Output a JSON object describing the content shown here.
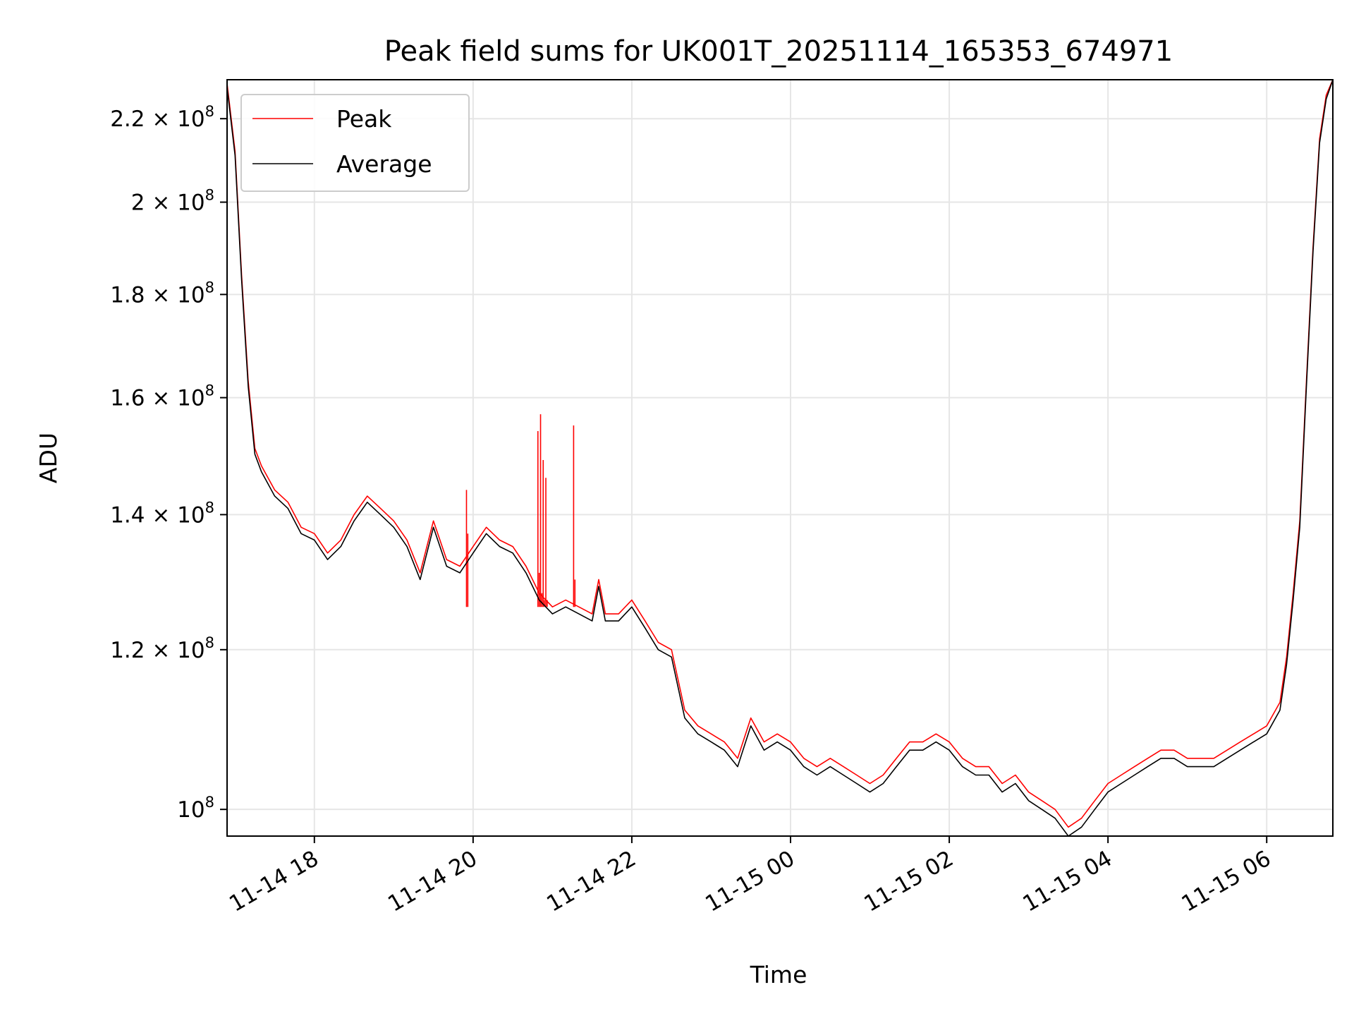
{
  "chart_data": {
    "type": "line",
    "title": "Peak field sums for UK001T_20251114_165353_674971",
    "xlabel": "Time",
    "ylabel": "ADU",
    "y_scale": "log",
    "grid": true,
    "legend_placement": "top-left",
    "xlim": [
      "2025-11-14 16:54",
      "2025-11-15 06:50"
    ],
    "ylim": [
      97000000,
      230000000
    ],
    "x_ticks": [
      {
        "value": "2025-11-14 18:00",
        "label": "11-14 18"
      },
      {
        "value": "2025-11-14 20:00",
        "label": "11-14 20"
      },
      {
        "value": "2025-11-14 22:00",
        "label": "11-14 22"
      },
      {
        "value": "2025-11-15 00:00",
        "label": "11-15 00"
      },
      {
        "value": "2025-11-15 02:00",
        "label": "11-15 02"
      },
      {
        "value": "2025-11-15 04:00",
        "label": "11-15 04"
      },
      {
        "value": "2025-11-15 06:00",
        "label": "11-15 06"
      }
    ],
    "y_ticks": [
      {
        "value": 100000000,
        "mant": "",
        "exp": "8"
      },
      {
        "value": 120000000,
        "mant": "1.2 × ",
        "exp": "8"
      },
      {
        "value": 140000000,
        "mant": "1.4 × ",
        "exp": "8"
      },
      {
        "value": 160000000,
        "mant": "1.6 × ",
        "exp": "8"
      },
      {
        "value": 180000000,
        "mant": "1.8 × ",
        "exp": "8"
      },
      {
        "value": 200000000,
        "mant": "2 × ",
        "exp": "8"
      },
      {
        "value": 220000000,
        "mant": "2.2 × ",
        "exp": "8"
      }
    ],
    "series": [
      {
        "name": "Peak",
        "color": "#ff0000",
        "points": [
          [
            "2025-11-14 16:54",
            229000000
          ],
          [
            "2025-11-14 17:00",
            212000000
          ],
          [
            "2025-11-14 17:05",
            184000000
          ],
          [
            "2025-11-14 17:10",
            163000000
          ],
          [
            "2025-11-14 17:15",
            151000000
          ],
          [
            "2025-11-14 17:20",
            148000000
          ],
          [
            "2025-11-14 17:30",
            144000000
          ],
          [
            "2025-11-14 17:40",
            142000000
          ],
          [
            "2025-11-14 17:50",
            138000000
          ],
          [
            "2025-11-14 18:00",
            137000000
          ],
          [
            "2025-11-14 18:10",
            134000000
          ],
          [
            "2025-11-14 18:20",
            136000000
          ],
          [
            "2025-11-14 18:30",
            140000000
          ],
          [
            "2025-11-14 18:40",
            143000000
          ],
          [
            "2025-11-14 18:50",
            141000000
          ],
          [
            "2025-11-14 19:00",
            139000000
          ],
          [
            "2025-11-14 19:10",
            136000000
          ],
          [
            "2025-11-14 19:20",
            131000000
          ],
          [
            "2025-11-14 19:30",
            139000000
          ],
          [
            "2025-11-14 19:40",
            133000000
          ],
          [
            "2025-11-14 19:50",
            132000000
          ],
          [
            "2025-11-14 20:00",
            135000000
          ],
          [
            "2025-11-14 20:10",
            138000000
          ],
          [
            "2025-11-14 20:20",
            136000000
          ],
          [
            "2025-11-14 20:30",
            135000000
          ],
          [
            "2025-11-14 20:40",
            132000000
          ],
          [
            "2025-11-14 20:50",
            128000000
          ],
          [
            "2025-11-14 21:00",
            126000000
          ],
          [
            "2025-11-14 21:10",
            127000000
          ],
          [
            "2025-11-14 21:20",
            126000000
          ],
          [
            "2025-11-14 21:30",
            125000000
          ],
          [
            "2025-11-14 21:35",
            130000000
          ],
          [
            "2025-11-14 21:40",
            125000000
          ],
          [
            "2025-11-14 21:50",
            125000000
          ],
          [
            "2025-11-14 22:00",
            127000000
          ],
          [
            "2025-11-14 22:10",
            124000000
          ],
          [
            "2025-11-14 22:20",
            121000000
          ],
          [
            "2025-11-14 22:30",
            120000000
          ],
          [
            "2025-11-14 22:40",
            112000000
          ],
          [
            "2025-11-14 22:50",
            110000000
          ],
          [
            "2025-11-14 23:00",
            109000000
          ],
          [
            "2025-11-14 23:10",
            108000000
          ],
          [
            "2025-11-14 23:20",
            106000000
          ],
          [
            "2025-11-14 23:30",
            111000000
          ],
          [
            "2025-11-14 23:40",
            108000000
          ],
          [
            "2025-11-14 23:50",
            109000000
          ],
          [
            "2025-11-15 00:00",
            108000000
          ],
          [
            "2025-11-15 00:10",
            106000000
          ],
          [
            "2025-11-15 00:20",
            105000000
          ],
          [
            "2025-11-15 00:30",
            106000000
          ],
          [
            "2025-11-15 00:40",
            105000000
          ],
          [
            "2025-11-15 00:50",
            104000000
          ],
          [
            "2025-11-15 01:00",
            103000000
          ],
          [
            "2025-11-15 01:10",
            104000000
          ],
          [
            "2025-11-15 01:20",
            106000000
          ],
          [
            "2025-11-15 01:30",
            108000000
          ],
          [
            "2025-11-15 01:40",
            108000000
          ],
          [
            "2025-11-15 01:50",
            109000000
          ],
          [
            "2025-11-15 02:00",
            108000000
          ],
          [
            "2025-11-15 02:10",
            106000000
          ],
          [
            "2025-11-15 02:20",
            105000000
          ],
          [
            "2025-11-15 02:30",
            105000000
          ],
          [
            "2025-11-15 02:40",
            103000000
          ],
          [
            "2025-11-15 02:50",
            104000000
          ],
          [
            "2025-11-15 03:00",
            102000000
          ],
          [
            "2025-11-15 03:10",
            101000000
          ],
          [
            "2025-11-15 03:20",
            100000000
          ],
          [
            "2025-11-15 03:30",
            98000000
          ],
          [
            "2025-11-15 03:40",
            99000000
          ],
          [
            "2025-11-15 03:50",
            101000000
          ],
          [
            "2025-11-15 04:00",
            103000000
          ],
          [
            "2025-11-15 04:10",
            104000000
          ],
          [
            "2025-11-15 04:20",
            105000000
          ],
          [
            "2025-11-15 04:30",
            106000000
          ],
          [
            "2025-11-15 04:40",
            107000000
          ],
          [
            "2025-11-15 04:50",
            107000000
          ],
          [
            "2025-11-15 05:00",
            106000000
          ],
          [
            "2025-11-15 05:10",
            106000000
          ],
          [
            "2025-11-15 05:20",
            106000000
          ],
          [
            "2025-11-15 05:30",
            107000000
          ],
          [
            "2025-11-15 05:40",
            108000000
          ],
          [
            "2025-11-15 05:50",
            109000000
          ],
          [
            "2025-11-15 06:00",
            110000000
          ],
          [
            "2025-11-15 06:10",
            113000000
          ],
          [
            "2025-11-15 06:15",
            119000000
          ],
          [
            "2025-11-15 06:20",
            128000000
          ],
          [
            "2025-11-15 06:25",
            139000000
          ],
          [
            "2025-11-15 06:30",
            163000000
          ],
          [
            "2025-11-15 06:35",
            190000000
          ],
          [
            "2025-11-15 06:40",
            215000000
          ],
          [
            "2025-11-15 06:45",
            226000000
          ],
          [
            "2025-11-15 06:50",
            230000000
          ]
        ],
        "spikes": [
          [
            "2025-11-14 20:49",
            154000000
          ],
          [
            "2025-11-14 20:50",
            131000000
          ],
          [
            "2025-11-14 20:51",
            157000000
          ],
          [
            "2025-11-14 20:52",
            128000000
          ],
          [
            "2025-11-14 20:53",
            149000000
          ],
          [
            "2025-11-14 20:54",
            127000000
          ],
          [
            "2025-11-14 20:55",
            146000000
          ],
          [
            "2025-11-14 20:56",
            127000000
          ],
          [
            "2025-11-14 21:16",
            155000000
          ],
          [
            "2025-11-14 21:17",
            130000000
          ],
          [
            "2025-11-14 19:55",
            144000000
          ],
          [
            "2025-11-14 19:56",
            137000000
          ]
        ]
      },
      {
        "name": "Average",
        "color": "#000000",
        "points": [
          [
            "2025-11-14 16:54",
            228000000
          ],
          [
            "2025-11-14 17:00",
            211000000
          ],
          [
            "2025-11-14 17:05",
            183000000
          ],
          [
            "2025-11-14 17:10",
            162000000
          ],
          [
            "2025-11-14 17:15",
            150000000
          ],
          [
            "2025-11-14 17:20",
            147000000
          ],
          [
            "2025-11-14 17:30",
            143000000
          ],
          [
            "2025-11-14 17:40",
            141000000
          ],
          [
            "2025-11-14 17:50",
            137000000
          ],
          [
            "2025-11-14 18:00",
            136000000
          ],
          [
            "2025-11-14 18:10",
            133000000
          ],
          [
            "2025-11-14 18:20",
            135000000
          ],
          [
            "2025-11-14 18:30",
            139000000
          ],
          [
            "2025-11-14 18:40",
            142000000
          ],
          [
            "2025-11-14 18:50",
            140000000
          ],
          [
            "2025-11-14 19:00",
            138000000
          ],
          [
            "2025-11-14 19:10",
            135000000
          ],
          [
            "2025-11-14 19:20",
            130000000
          ],
          [
            "2025-11-14 19:30",
            138000000
          ],
          [
            "2025-11-14 19:40",
            132000000
          ],
          [
            "2025-11-14 19:50",
            131000000
          ],
          [
            "2025-11-14 20:00",
            134000000
          ],
          [
            "2025-11-14 20:10",
            137000000
          ],
          [
            "2025-11-14 20:20",
            135000000
          ],
          [
            "2025-11-14 20:30",
            134000000
          ],
          [
            "2025-11-14 20:40",
            131000000
          ],
          [
            "2025-11-14 20:50",
            127000000
          ],
          [
            "2025-11-14 21:00",
            125000000
          ],
          [
            "2025-11-14 21:10",
            126000000
          ],
          [
            "2025-11-14 21:20",
            125000000
          ],
          [
            "2025-11-14 21:30",
            124000000
          ],
          [
            "2025-11-14 21:35",
            129000000
          ],
          [
            "2025-11-14 21:40",
            124000000
          ],
          [
            "2025-11-14 21:50",
            124000000
          ],
          [
            "2025-11-14 22:00",
            126000000
          ],
          [
            "2025-11-14 22:10",
            123000000
          ],
          [
            "2025-11-14 22:20",
            120000000
          ],
          [
            "2025-11-14 22:30",
            119000000
          ],
          [
            "2025-11-14 22:40",
            111000000
          ],
          [
            "2025-11-14 22:50",
            109000000
          ],
          [
            "2025-11-14 23:00",
            108000000
          ],
          [
            "2025-11-14 23:10",
            107000000
          ],
          [
            "2025-11-14 23:20",
            105000000
          ],
          [
            "2025-11-14 23:30",
            110000000
          ],
          [
            "2025-11-14 23:40",
            107000000
          ],
          [
            "2025-11-14 23:50",
            108000000
          ],
          [
            "2025-11-15 00:00",
            107000000
          ],
          [
            "2025-11-15 00:10",
            105000000
          ],
          [
            "2025-11-15 00:20",
            104000000
          ],
          [
            "2025-11-15 00:30",
            105000000
          ],
          [
            "2025-11-15 00:40",
            104000000
          ],
          [
            "2025-11-15 00:50",
            103000000
          ],
          [
            "2025-11-15 01:00",
            102000000
          ],
          [
            "2025-11-15 01:10",
            103000000
          ],
          [
            "2025-11-15 01:20",
            105000000
          ],
          [
            "2025-11-15 01:30",
            107000000
          ],
          [
            "2025-11-15 01:40",
            107000000
          ],
          [
            "2025-11-15 01:50",
            108000000
          ],
          [
            "2025-11-15 02:00",
            107000000
          ],
          [
            "2025-11-15 02:10",
            105000000
          ],
          [
            "2025-11-15 02:20",
            104000000
          ],
          [
            "2025-11-15 02:30",
            104000000
          ],
          [
            "2025-11-15 02:40",
            102000000
          ],
          [
            "2025-11-15 02:50",
            103000000
          ],
          [
            "2025-11-15 03:00",
            101000000
          ],
          [
            "2025-11-15 03:10",
            100000000
          ],
          [
            "2025-11-15 03:20",
            99000000
          ],
          [
            "2025-11-15 03:30",
            97000000
          ],
          [
            "2025-11-15 03:40",
            98000000
          ],
          [
            "2025-11-15 03:50",
            100000000
          ],
          [
            "2025-11-15 04:00",
            102000000
          ],
          [
            "2025-11-15 04:10",
            103000000
          ],
          [
            "2025-11-15 04:20",
            104000000
          ],
          [
            "2025-11-15 04:30",
            105000000
          ],
          [
            "2025-11-15 04:40",
            106000000
          ],
          [
            "2025-11-15 04:50",
            106000000
          ],
          [
            "2025-11-15 05:00",
            105000000
          ],
          [
            "2025-11-15 05:10",
            105000000
          ],
          [
            "2025-11-15 05:20",
            105000000
          ],
          [
            "2025-11-15 05:30",
            106000000
          ],
          [
            "2025-11-15 05:40",
            107000000
          ],
          [
            "2025-11-15 05:50",
            108000000
          ],
          [
            "2025-11-15 06:00",
            109000000
          ],
          [
            "2025-11-15 06:10",
            112000000
          ],
          [
            "2025-11-15 06:15",
            118000000
          ],
          [
            "2025-11-15 06:20",
            127000000
          ],
          [
            "2025-11-15 06:25",
            138000000
          ],
          [
            "2025-11-15 06:30",
            162000000
          ],
          [
            "2025-11-15 06:35",
            189000000
          ],
          [
            "2025-11-15 06:40",
            214000000
          ],
          [
            "2025-11-15 06:45",
            225000000
          ],
          [
            "2025-11-15 06:50",
            230000000
          ]
        ]
      }
    ]
  }
}
